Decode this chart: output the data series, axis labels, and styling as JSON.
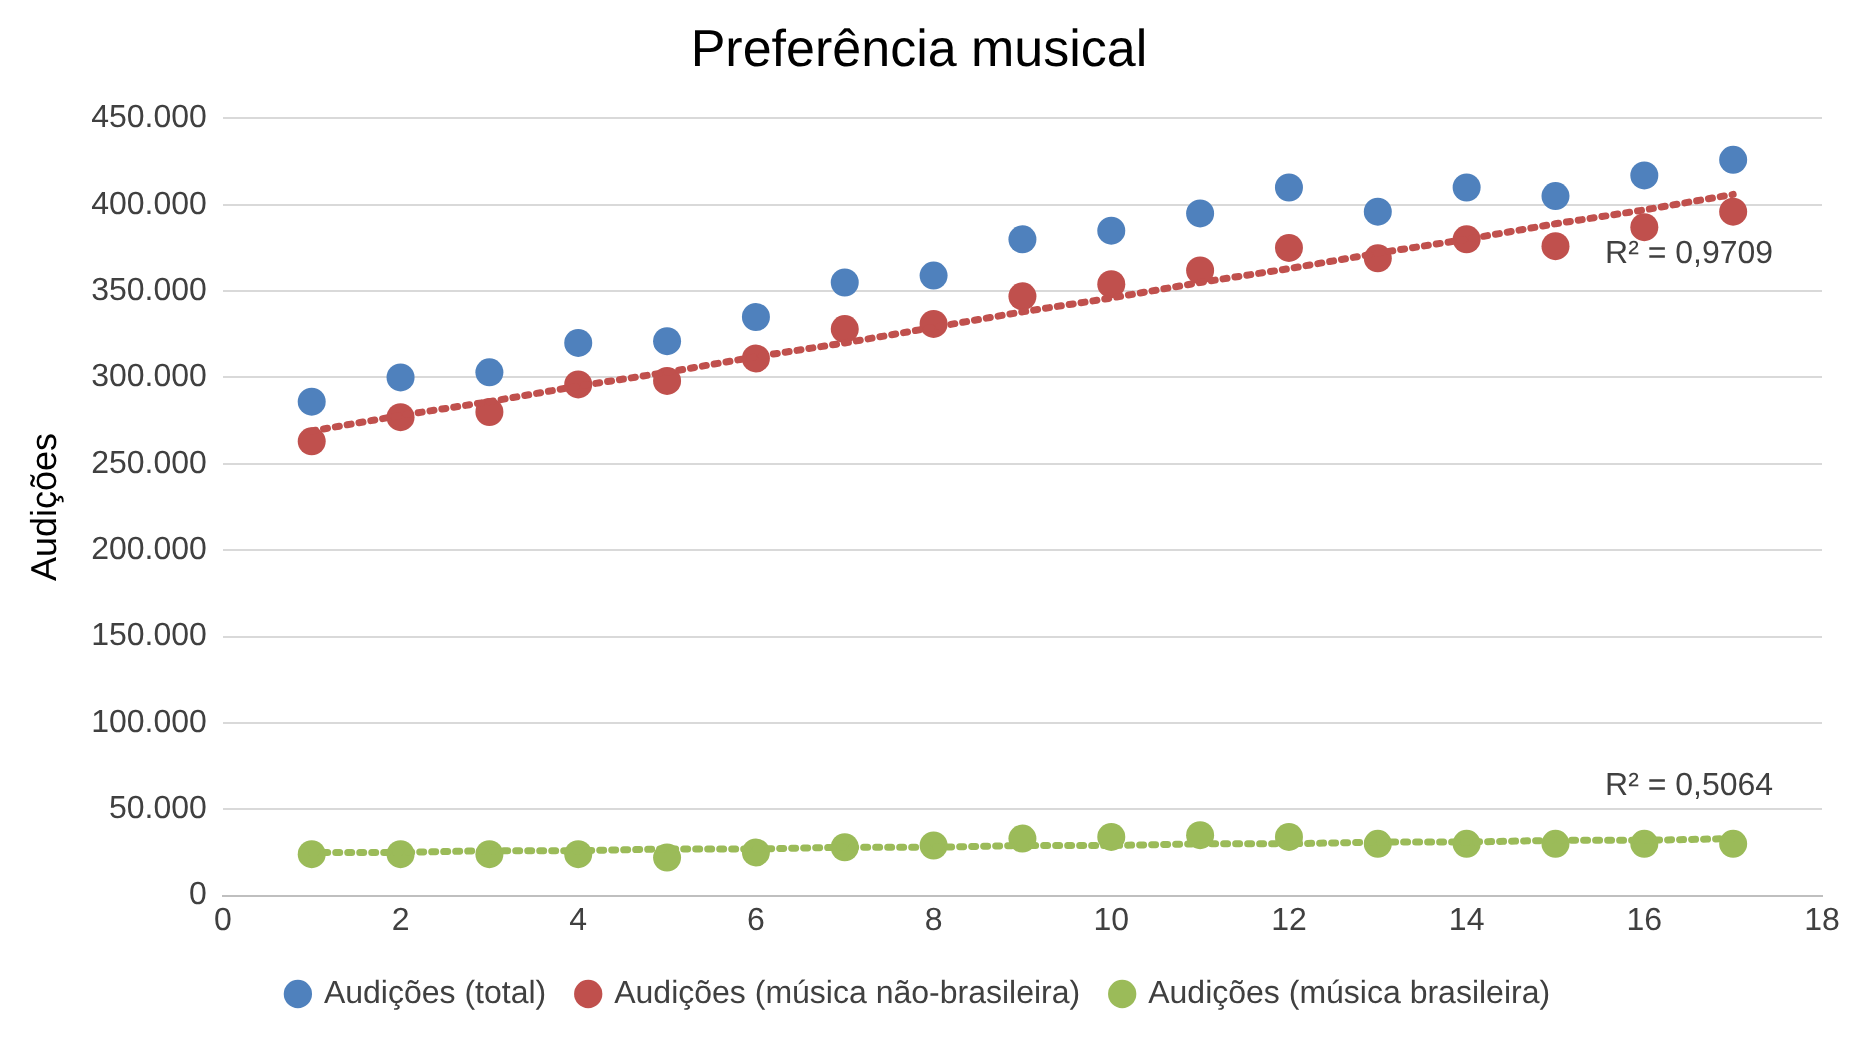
{
  "chart_data": {
    "type": "scatter",
    "title": "Preferência musical",
    "ylabel": "Audições",
    "x": [
      1,
      2,
      3,
      4,
      5,
      6,
      7,
      8,
      9,
      10,
      11,
      12,
      13,
      14,
      15,
      16,
      17
    ],
    "series": [
      {
        "name": "Audições (total)",
        "color": "#4f81bd",
        "values": [
          286000,
          300000,
          303000,
          320000,
          321000,
          335000,
          355000,
          359000,
          380000,
          385000,
          395000,
          410000,
          396000,
          410000,
          405000,
          417000,
          426000
        ]
      },
      {
        "name": "Audições (música não-brasileira)",
        "color": "#c0504d",
        "values": [
          263000,
          277000,
          280000,
          296000,
          298000,
          311000,
          328000,
          331000,
          347000,
          354000,
          362000,
          375000,
          369000,
          380000,
          376000,
          387000,
          396000
        ]
      },
      {
        "name": "Audições (música brasileira)",
        "color": "#9bbb59",
        "values": [
          24000,
          24000,
          24000,
          24000,
          22000,
          25000,
          28000,
          29000,
          33000,
          34000,
          35000,
          34000,
          30000,
          30000,
          30000,
          30000,
          30000
        ]
      },
      {
        "type": "line",
        "color": "#c0504d",
        "values": [
          269000,
          278000,
          286000,
          295000,
          303000,
          312000,
          320000,
          329000,
          338000,
          346000,
          355000,
          363000,
          372000,
          380000,
          389000,
          397000,
          406000
        ],
        "line_style": "dotted",
        "marker": "none"
      },
      {
        "type": "line",
        "color": "#9bbb59",
        "values": [
          25000,
          25000,
          26000,
          26000,
          27000,
          27000,
          28000,
          28000,
          29000,
          29000,
          30000,
          30000,
          31000,
          31000,
          32000,
          32000,
          33000
        ],
        "line_style": "dotted",
        "marker": "none"
      }
    ],
    "xlim": [
      0,
      18
    ],
    "xticks": [
      0,
      2,
      4,
      6,
      8,
      10,
      12,
      14,
      16,
      18
    ],
    "ylim": [
      0,
      450000
    ],
    "yticks": [
      {
        "value": 0,
        "label": "0"
      },
      {
        "value": 50000,
        "label": "50.000"
      },
      {
        "value": 100000,
        "label": "100.000"
      },
      {
        "value": 150000,
        "label": "150.000"
      },
      {
        "value": 200000,
        "label": "200.000"
      },
      {
        "value": 250000,
        "label": "250.000"
      },
      {
        "value": 300000,
        "label": "300.000"
      },
      {
        "value": 350000,
        "label": "350.000"
      },
      {
        "value": 400000,
        "label": "400.000"
      },
      {
        "value": 450000,
        "label": "450.000"
      }
    ],
    "annotations": [
      "R² = 0,9709",
      "R² = 0,5064"
    ],
    "grid": "y",
    "legend": "bottom",
    "marker": "circle"
  }
}
